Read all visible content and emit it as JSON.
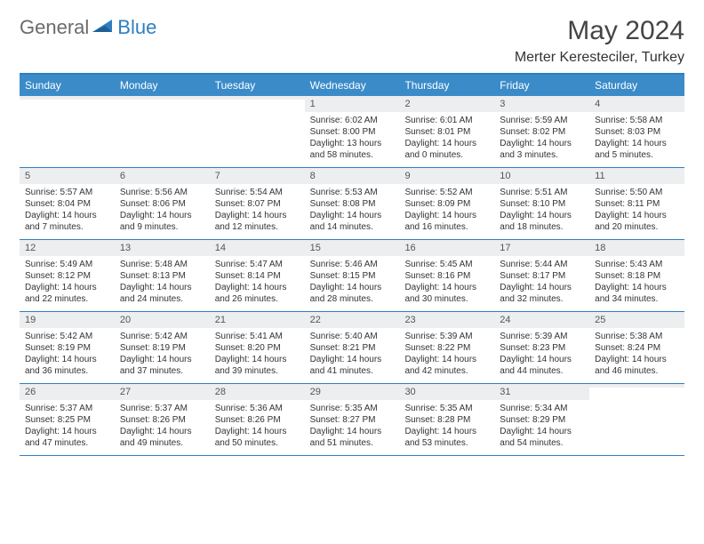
{
  "brand": {
    "part1": "General",
    "part2": "Blue"
  },
  "title": "May 2024",
  "location": "Merter Keresteciler, Turkey",
  "colors": {
    "header_bg": "#3b8bc9",
    "accent": "#2f7ec2",
    "daynum_bg": "#eceef0",
    "text": "#333333",
    "white": "#ffffff"
  },
  "weekdays": [
    "Sunday",
    "Monday",
    "Tuesday",
    "Wednesday",
    "Thursday",
    "Friday",
    "Saturday"
  ],
  "weeks": [
    [
      {
        "n": "",
        "s": "",
        "ss": "",
        "d": ""
      },
      {
        "n": "",
        "s": "",
        "ss": "",
        "d": ""
      },
      {
        "n": "",
        "s": "",
        "ss": "",
        "d": ""
      },
      {
        "n": "1",
        "s": "Sunrise: 6:02 AM",
        "ss": "Sunset: 8:00 PM",
        "d": "Daylight: 13 hours and 58 minutes."
      },
      {
        "n": "2",
        "s": "Sunrise: 6:01 AM",
        "ss": "Sunset: 8:01 PM",
        "d": "Daylight: 14 hours and 0 minutes."
      },
      {
        "n": "3",
        "s": "Sunrise: 5:59 AM",
        "ss": "Sunset: 8:02 PM",
        "d": "Daylight: 14 hours and 3 minutes."
      },
      {
        "n": "4",
        "s": "Sunrise: 5:58 AM",
        "ss": "Sunset: 8:03 PM",
        "d": "Daylight: 14 hours and 5 minutes."
      }
    ],
    [
      {
        "n": "5",
        "s": "Sunrise: 5:57 AM",
        "ss": "Sunset: 8:04 PM",
        "d": "Daylight: 14 hours and 7 minutes."
      },
      {
        "n": "6",
        "s": "Sunrise: 5:56 AM",
        "ss": "Sunset: 8:06 PM",
        "d": "Daylight: 14 hours and 9 minutes."
      },
      {
        "n": "7",
        "s": "Sunrise: 5:54 AM",
        "ss": "Sunset: 8:07 PM",
        "d": "Daylight: 14 hours and 12 minutes."
      },
      {
        "n": "8",
        "s": "Sunrise: 5:53 AM",
        "ss": "Sunset: 8:08 PM",
        "d": "Daylight: 14 hours and 14 minutes."
      },
      {
        "n": "9",
        "s": "Sunrise: 5:52 AM",
        "ss": "Sunset: 8:09 PM",
        "d": "Daylight: 14 hours and 16 minutes."
      },
      {
        "n": "10",
        "s": "Sunrise: 5:51 AM",
        "ss": "Sunset: 8:10 PM",
        "d": "Daylight: 14 hours and 18 minutes."
      },
      {
        "n": "11",
        "s": "Sunrise: 5:50 AM",
        "ss": "Sunset: 8:11 PM",
        "d": "Daylight: 14 hours and 20 minutes."
      }
    ],
    [
      {
        "n": "12",
        "s": "Sunrise: 5:49 AM",
        "ss": "Sunset: 8:12 PM",
        "d": "Daylight: 14 hours and 22 minutes."
      },
      {
        "n": "13",
        "s": "Sunrise: 5:48 AM",
        "ss": "Sunset: 8:13 PM",
        "d": "Daylight: 14 hours and 24 minutes."
      },
      {
        "n": "14",
        "s": "Sunrise: 5:47 AM",
        "ss": "Sunset: 8:14 PM",
        "d": "Daylight: 14 hours and 26 minutes."
      },
      {
        "n": "15",
        "s": "Sunrise: 5:46 AM",
        "ss": "Sunset: 8:15 PM",
        "d": "Daylight: 14 hours and 28 minutes."
      },
      {
        "n": "16",
        "s": "Sunrise: 5:45 AM",
        "ss": "Sunset: 8:16 PM",
        "d": "Daylight: 14 hours and 30 minutes."
      },
      {
        "n": "17",
        "s": "Sunrise: 5:44 AM",
        "ss": "Sunset: 8:17 PM",
        "d": "Daylight: 14 hours and 32 minutes."
      },
      {
        "n": "18",
        "s": "Sunrise: 5:43 AM",
        "ss": "Sunset: 8:18 PM",
        "d": "Daylight: 14 hours and 34 minutes."
      }
    ],
    [
      {
        "n": "19",
        "s": "Sunrise: 5:42 AM",
        "ss": "Sunset: 8:19 PM",
        "d": "Daylight: 14 hours and 36 minutes."
      },
      {
        "n": "20",
        "s": "Sunrise: 5:42 AM",
        "ss": "Sunset: 8:19 PM",
        "d": "Daylight: 14 hours and 37 minutes."
      },
      {
        "n": "21",
        "s": "Sunrise: 5:41 AM",
        "ss": "Sunset: 8:20 PM",
        "d": "Daylight: 14 hours and 39 minutes."
      },
      {
        "n": "22",
        "s": "Sunrise: 5:40 AM",
        "ss": "Sunset: 8:21 PM",
        "d": "Daylight: 14 hours and 41 minutes."
      },
      {
        "n": "23",
        "s": "Sunrise: 5:39 AM",
        "ss": "Sunset: 8:22 PM",
        "d": "Daylight: 14 hours and 42 minutes."
      },
      {
        "n": "24",
        "s": "Sunrise: 5:39 AM",
        "ss": "Sunset: 8:23 PM",
        "d": "Daylight: 14 hours and 44 minutes."
      },
      {
        "n": "25",
        "s": "Sunrise: 5:38 AM",
        "ss": "Sunset: 8:24 PM",
        "d": "Daylight: 14 hours and 46 minutes."
      }
    ],
    [
      {
        "n": "26",
        "s": "Sunrise: 5:37 AM",
        "ss": "Sunset: 8:25 PM",
        "d": "Daylight: 14 hours and 47 minutes."
      },
      {
        "n": "27",
        "s": "Sunrise: 5:37 AM",
        "ss": "Sunset: 8:26 PM",
        "d": "Daylight: 14 hours and 49 minutes."
      },
      {
        "n": "28",
        "s": "Sunrise: 5:36 AM",
        "ss": "Sunset: 8:26 PM",
        "d": "Daylight: 14 hours and 50 minutes."
      },
      {
        "n": "29",
        "s": "Sunrise: 5:35 AM",
        "ss": "Sunset: 8:27 PM",
        "d": "Daylight: 14 hours and 51 minutes."
      },
      {
        "n": "30",
        "s": "Sunrise: 5:35 AM",
        "ss": "Sunset: 8:28 PM",
        "d": "Daylight: 14 hours and 53 minutes."
      },
      {
        "n": "31",
        "s": "Sunrise: 5:34 AM",
        "ss": "Sunset: 8:29 PM",
        "d": "Daylight: 14 hours and 54 minutes."
      },
      {
        "n": "",
        "s": "",
        "ss": "",
        "d": ""
      }
    ]
  ]
}
